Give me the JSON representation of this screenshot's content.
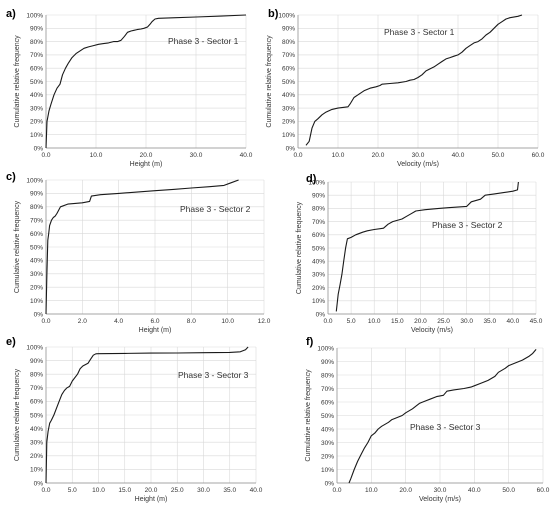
{
  "chart_data": [
    {
      "type": "line",
      "panel": "a)",
      "annotation": "Phase 3 - Sector 1",
      "xlabel": "Height (m)",
      "ylabel": "Cumulative relative frequency",
      "xlim": [
        0,
        40
      ],
      "xticks": [
        "0.0",
        "10.0",
        "20.0",
        "30.0",
        "40.0"
      ],
      "ylim": [
        0,
        100
      ],
      "yticks": [
        "0%",
        "10%",
        "20%",
        "30%",
        "40%",
        "50%",
        "60%",
        "70%",
        "80%",
        "90%",
        "100%"
      ],
      "grid": true,
      "series": [
        {
          "x": [
            0,
            0.2,
            0.6,
            1.0,
            1.6,
            2.2,
            2.8,
            3.3,
            3.9,
            4.5,
            5.2,
            6.0,
            6.8,
            7.6,
            8.5,
            9.5,
            10.5,
            11.5,
            12.5,
            13.5,
            14.3,
            15.0,
            15.7,
            16.3,
            17.0,
            17.6,
            18.2,
            19.0,
            19.6,
            20.3,
            20.8,
            21.2,
            21.8,
            22.5,
            26.0,
            30.0,
            35.0,
            40.0
          ],
          "y": [
            0,
            20,
            28,
            33,
            40,
            45,
            48,
            55,
            60,
            64,
            68,
            71,
            73,
            75,
            76,
            77,
            78,
            78.5,
            79,
            80,
            80,
            81,
            84,
            87,
            88,
            88.5,
            89,
            89.5,
            90,
            91,
            93,
            95,
            97,
            97.5,
            98,
            98.5,
            99.2,
            100
          ]
        }
      ]
    },
    {
      "type": "line",
      "panel": "b)",
      "annotation": "Phase 3 - Sector 1",
      "xlabel": "Velocity (m/s)",
      "ylabel": "Cumulative relative frequency",
      "xlim": [
        0,
        60
      ],
      "xticks": [
        "0.0",
        "10.0",
        "20.0",
        "30.0",
        "40.0",
        "50.0",
        "60.0"
      ],
      "ylim": [
        0,
        100
      ],
      "yticks": [
        "0%",
        "10%",
        "20%",
        "30%",
        "40%",
        "50%",
        "60%",
        "70%",
        "80%",
        "90%",
        "100%"
      ],
      "grid": true,
      "series": [
        {
          "x": [
            2,
            2.8,
            3.5,
            4.2,
            5,
            6,
            7,
            8.5,
            10,
            12.5,
            13,
            14,
            15,
            16.5,
            18,
            19.5,
            20.5,
            21,
            23,
            25,
            27,
            28,
            29,
            30,
            31,
            32,
            34,
            35,
            36,
            37,
            38,
            39,
            40,
            41,
            42,
            43,
            44,
            45,
            46,
            47,
            48,
            49,
            50,
            51,
            52,
            53,
            55,
            56
          ],
          "y": [
            2,
            5,
            15,
            20,
            22,
            25,
            27,
            29,
            30,
            31,
            33,
            38,
            40,
            43,
            45,
            46,
            47,
            48,
            48.5,
            49,
            50,
            51,
            51.5,
            53,
            55,
            58,
            61,
            63,
            65,
            67,
            68,
            69,
            70,
            72,
            75,
            77,
            79,
            80,
            82,
            85,
            87,
            90,
            93,
            95,
            97,
            98,
            99,
            100
          ]
        }
      ]
    },
    {
      "type": "line",
      "panel": "c)",
      "annotation": "Phase 3 - Sector 2",
      "xlabel": "Height (m)",
      "ylabel": "Cumulative relative frequency",
      "xlim": [
        0,
        12
      ],
      "xticks": [
        "0.0",
        "2.0",
        "4.0",
        "6.0",
        "8.0",
        "10.0",
        "12.0"
      ],
      "ylim": [
        0,
        100
      ],
      "yticks": [
        "0%",
        "10%",
        "20%",
        "30%",
        "40%",
        "50%",
        "60%",
        "70%",
        "80%",
        "90%",
        "100%"
      ],
      "grid": true,
      "series": [
        {
          "x": [
            0,
            0.05,
            0.1,
            0.15,
            0.2,
            0.3,
            0.4,
            0.5,
            0.6,
            0.8,
            1.2,
            2.0,
            2.4,
            2.5,
            3.0,
            4.0,
            5.0,
            6.0,
            7.0,
            8.0,
            9.0,
            9.8,
            10.2,
            10.6
          ],
          "y": [
            0,
            30,
            55,
            60,
            66,
            70,
            72,
            73,
            75,
            80,
            82,
            83,
            84,
            88,
            89,
            90,
            91,
            92,
            93,
            94,
            95,
            96,
            98,
            100
          ]
        }
      ]
    },
    {
      "type": "line",
      "panel": "d)",
      "annotation": "Phase 3 - Sector 2",
      "xlabel": "Velocity (m/s)",
      "ylabel": "Cumulative relative frequency",
      "xlim": [
        0,
        45
      ],
      "xticks": [
        "0.0",
        "5.0",
        "10.0",
        "15.0",
        "20.0",
        "25.0",
        "30.0",
        "35.0",
        "40.0",
        "45.0"
      ],
      "ylim": [
        0,
        100
      ],
      "yticks": [
        "0%",
        "10%",
        "20%",
        "30%",
        "40%",
        "50%",
        "60%",
        "70%",
        "80%",
        "90%",
        "100%"
      ],
      "grid": true,
      "series": [
        {
          "x": [
            1.8,
            2.2,
            2.6,
            3.0,
            3.4,
            3.8,
            4.2,
            5.0,
            6.0,
            7.5,
            8.5,
            10,
            12,
            13,
            14,
            16,
            17,
            18,
            19,
            21,
            24,
            26,
            28,
            30,
            31,
            33,
            34,
            36,
            38,
            40,
            41,
            41.2
          ],
          "y": [
            2,
            15,
            22,
            30,
            40,
            50,
            57,
            58,
            60,
            62,
            63,
            64,
            65,
            68,
            70,
            72,
            74,
            76,
            78,
            79,
            80,
            80.5,
            81,
            81.5,
            85,
            87,
            90,
            91,
            92,
            93,
            94,
            100
          ]
        }
      ]
    },
    {
      "type": "line",
      "panel": "e)",
      "annotation": "Phase 3 - Sector 3",
      "xlabel": "Height (m)",
      "ylabel": "Cumulative relative frequency",
      "xlim": [
        0,
        40
      ],
      "xticks": [
        "0.0",
        "5.0",
        "10.0",
        "15.0",
        "20.0",
        "25.0",
        "30.0",
        "35.0",
        "40.0"
      ],
      "ylim": [
        0,
        100
      ],
      "yticks": [
        "0%",
        "10%",
        "20%",
        "30%",
        "40%",
        "50%",
        "60%",
        "70%",
        "80%",
        "90%",
        "100%"
      ],
      "grid": true,
      "series": [
        {
          "x": [
            0,
            0.15,
            0.4,
            0.7,
            1.0,
            1.5,
            2.0,
            2.5,
            3.0,
            3.5,
            4.0,
            4.5,
            5.0,
            6.0,
            6.5,
            7.0,
            8.0,
            8.5,
            9.0,
            9.5,
            10,
            15,
            20,
            25,
            30,
            35,
            37,
            38,
            38.5
          ],
          "y": [
            0,
            30,
            38,
            44,
            46,
            50,
            55,
            60,
            65,
            68,
            70,
            71,
            75,
            80,
            84,
            86,
            88,
            91,
            94,
            95,
            95.1,
            95.3,
            95.5,
            95.6,
            95.8,
            96,
            96.5,
            98,
            100
          ]
        }
      ]
    },
    {
      "type": "line",
      "panel": "f)",
      "annotation": "Phase 3 - Sector 3",
      "xlabel": "Velocity (m/s)",
      "ylabel": "Cumulative relative frequency",
      "xlim": [
        0,
        60
      ],
      "xticks": [
        "0.0",
        "10.0",
        "20.0",
        "30.0",
        "40.0",
        "50.0",
        "60.0"
      ],
      "ylim": [
        0,
        100
      ],
      "yticks": [
        "0%",
        "10%",
        "20%",
        "30%",
        "40%",
        "50%",
        "60%",
        "70%",
        "80%",
        "90%",
        "100%"
      ],
      "grid": true,
      "series": [
        {
          "x": [
            3.5,
            4,
            5,
            6,
            7,
            8,
            9,
            10,
            11,
            12,
            13,
            15,
            16,
            17,
            19,
            20,
            22,
            23,
            24,
            25,
            26,
            27,
            29,
            31,
            32,
            34,
            37,
            39,
            40,
            42,
            44,
            46,
            47,
            49,
            50,
            52,
            54,
            56,
            57,
            58
          ],
          "y": [
            0,
            3,
            10,
            16,
            21,
            26,
            30,
            35,
            37,
            40,
            42,
            45,
            47,
            48,
            50,
            52,
            55,
            57,
            59,
            60,
            61,
            62,
            64,
            65,
            68,
            69,
            70,
            71,
            72,
            74,
            76,
            79,
            82,
            85,
            87,
            89,
            91,
            94,
            96,
            99
          ]
        }
      ]
    }
  ]
}
